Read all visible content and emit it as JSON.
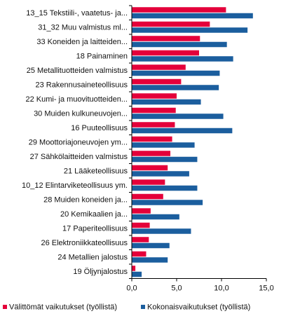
{
  "chart_data": {
    "type": "bar",
    "orientation": "horizontal",
    "categories": [
      "13_15 Tekstiili-, vaatetus- ja...",
      "31_32 Muu valmistus ml...",
      "33 Koneiden ja laitteiden...",
      "18 Painaminen",
      "25 Metallituotteiden valmistus",
      "23 Rakennusaineteollisuus",
      "22 Kumi- ja muovituotteiden...",
      "30 Muiden kulkuneuvojen...",
      "16 Puuteollisuus",
      "29 Moottoriajoneuvojen ym...",
      "27 Sähkölaitteiden valmistus",
      "21 Lääketeollisuus",
      "10_12 Elintarviketeollisuus ym.",
      "28 Muiden koneiden ja...",
      "20 Kemikaalien ja...",
      "17 Paperiteollisuus",
      "26 Elektroniikkateollisuus",
      "24 Metallien jalostus",
      "19 Öljynjalostus"
    ],
    "series": [
      {
        "name": "Välittömät vaikutukset (työllistä)",
        "color": "#e4003a",
        "values": [
          10.5,
          8.7,
          7.6,
          7.5,
          6.0,
          5.5,
          5.0,
          4.9,
          4.8,
          4.5,
          4.3,
          4.0,
          3.7,
          3.5,
          2.1,
          2.0,
          1.9,
          1.6,
          0.4
        ]
      },
      {
        "name": "Kokonaisvaikutukset (työllistä)",
        "color": "#1b5e9e",
        "values": [
          13.5,
          12.9,
          10.6,
          11.3,
          9.8,
          9.7,
          7.7,
          10.2,
          11.2,
          7.0,
          7.3,
          6.4,
          7.3,
          7.9,
          5.3,
          6.6,
          4.2,
          4.0,
          1.1
        ]
      }
    ],
    "xlim": [
      0,
      15
    ],
    "xticks": [
      "0,0",
      "5,0",
      "10,0",
      "15,0"
    ],
    "grid": false,
    "legend": "bottom"
  }
}
